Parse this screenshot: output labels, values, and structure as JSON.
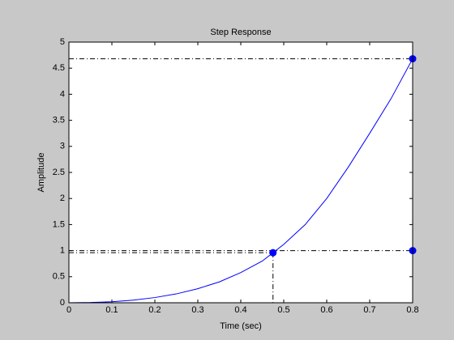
{
  "chart_data": {
    "type": "line",
    "title": "Step Response",
    "xlabel": "Time (sec)",
    "ylabel": "Amplitude",
    "x": [
      0,
      0.05,
      0.1,
      0.15,
      0.2,
      0.25,
      0.3,
      0.35,
      0.4,
      0.45,
      0.475,
      0.5,
      0.55,
      0.6,
      0.65,
      0.7,
      0.75,
      0.8
    ],
    "series": [
      {
        "color": "#0000ff",
        "values": [
          0,
          0.005,
          0.02,
          0.05,
          0.1,
          0.17,
          0.27,
          0.4,
          0.58,
          0.8,
          0.96,
          1.12,
          1.5,
          2.0,
          2.6,
          3.25,
          3.92,
          4.68
        ]
      }
    ],
    "markers": [
      {
        "x": 0.475,
        "y": 0.96
      },
      {
        "x": 0.8,
        "y": 4.68
      },
      {
        "x": 0.8,
        "y": 1
      }
    ],
    "marker_color": "#0000ff",
    "xlim": [
      0,
      0.8
    ],
    "xticks": [
      0,
      0.1,
      0.2,
      0.3,
      0.4,
      0.5,
      0.6,
      0.7,
      0.8
    ],
    "ylim": [
      0,
      5
    ],
    "yticks": [
      0,
      0.5,
      1,
      1.5,
      2,
      2.5,
      3,
      3.5,
      4,
      4.5,
      5
    ]
  }
}
